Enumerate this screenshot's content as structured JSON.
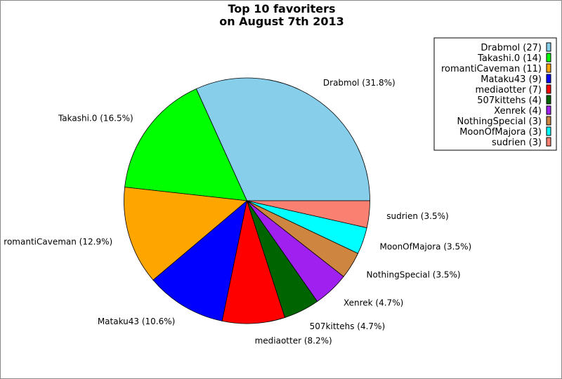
{
  "chart_data": {
    "type": "pie",
    "title": [
      "Top 10 favoriters",
      "on August 7th 2013"
    ],
    "start_angle_deg": 0,
    "direction": "counterclockwise",
    "legend_position": "top-right",
    "slices": [
      {
        "name": "Drabmol",
        "value": 27,
        "label": "Drabmol (31.8%)",
        "legend": "Drabmol (27)",
        "color": "#87CEEB"
      },
      {
        "name": "Takashi.0",
        "value": 14,
        "label": "Takashi.0 (16.5%)",
        "legend": "Takashi.0 (14)",
        "color": "#00FF00"
      },
      {
        "name": "romantiCaveman",
        "value": 11,
        "label": "romantiCaveman (12.9%)",
        "legend": "romantiCaveman (11)",
        "color": "#FFA500"
      },
      {
        "name": "Mataku43",
        "value": 9,
        "label": "Mataku43 (10.6%)",
        "legend": "Mataku43 (9)",
        "color": "#0000FF"
      },
      {
        "name": "mediaotter",
        "value": 7,
        "label": "mediaotter (8.2%)",
        "legend": "mediaotter (7)",
        "color": "#FF0000"
      },
      {
        "name": "507kittehs",
        "value": 4,
        "label": "507kittehs (4.7%)",
        "legend": "507kittehs (4)",
        "color": "#006400"
      },
      {
        "name": "Xenrek",
        "value": 4,
        "label": "Xenrek (4.7%)",
        "legend": "Xenrek (4)",
        "color": "#A020F0"
      },
      {
        "name": "NothingSpecial",
        "value": 3,
        "label": "NothingSpecial (3.5%)",
        "legend": "NothingSpecial (3)",
        "color": "#CD853F"
      },
      {
        "name": "MoonOfMajora",
        "value": 3,
        "label": "MoonOfMajora (3.5%)",
        "legend": "MoonOfMajora (3)",
        "color": "#00FFFF"
      },
      {
        "name": "sudrien",
        "value": 3,
        "label": "sudrien (3.5%)",
        "legend": "sudrien (3)",
        "color": "#FA8072"
      }
    ]
  }
}
